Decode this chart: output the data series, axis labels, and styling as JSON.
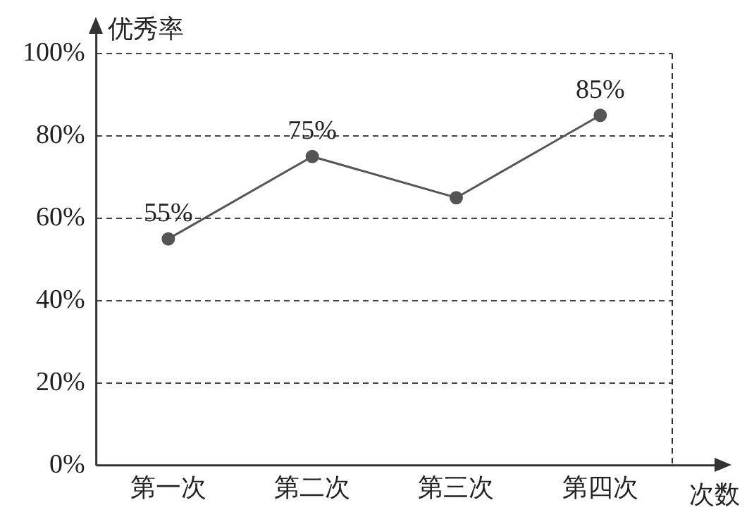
{
  "chart_data": {
    "type": "line",
    "xlabel": "次数",
    "ylabel": "优秀率",
    "categories": [
      "第一次",
      "第二次",
      "第三次",
      "第四次"
    ],
    "series": [
      {
        "color": "#555555",
        "values": [
          55,
          75,
          65,
          85
        ],
        "value_labels": [
          "55%",
          "75%",
          null,
          "85%"
        ]
      }
    ],
    "ylim": [
      0,
      100
    ],
    "yticks": [
      {
        "value": 0,
        "label": "0%"
      },
      {
        "value": 20,
        "label": "20%"
      },
      {
        "value": 40,
        "label": "40%"
      },
      {
        "value": 60,
        "label": "60%"
      },
      {
        "value": 80,
        "label": "80%"
      },
      {
        "value": 100,
        "label": "100%"
      }
    ],
    "grid": "y",
    "legend": false,
    "marker": "circle",
    "line_style": "solid"
  }
}
